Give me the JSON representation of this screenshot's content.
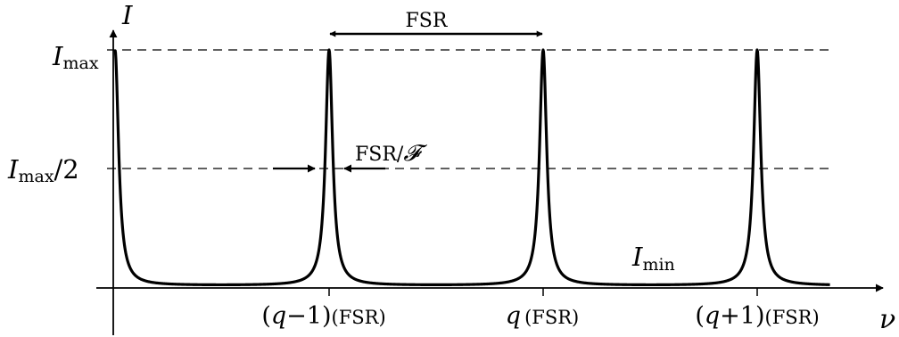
{
  "diagram": {
    "axes": {
      "y_symbol": "I",
      "x_symbol": "ν"
    },
    "levels": {
      "max": {
        "symbol": "I",
        "subscript": "max"
      },
      "half": {
        "symbol": "I",
        "subscript": "max",
        "suffix": "/2"
      },
      "min": {
        "symbol": "I",
        "subscript": "min"
      }
    },
    "annotations": {
      "fsr": "FSR",
      "linewidth_prefix": "FSR/",
      "finesse_symbol": "𝓕"
    },
    "ticks": [
      {
        "pre": "(",
        "q": "q",
        "post": "−1)",
        "unit": "(FSR)"
      },
      {
        "pre": "",
        "q": "q",
        "post": "",
        "unit": "(FSR)"
      },
      {
        "pre": "(",
        "q": "q",
        "post": "+1)",
        "unit": "(FSR)"
      }
    ],
    "curve": {
      "peak_orders": [
        -2,
        -1,
        0,
        1
      ],
      "half_width_fraction_of_fsr": 0.02,
      "baseline_fraction_of_max": 0.01,
      "x_start_order": -2,
      "x_end_order": 1.34
    }
  }
}
